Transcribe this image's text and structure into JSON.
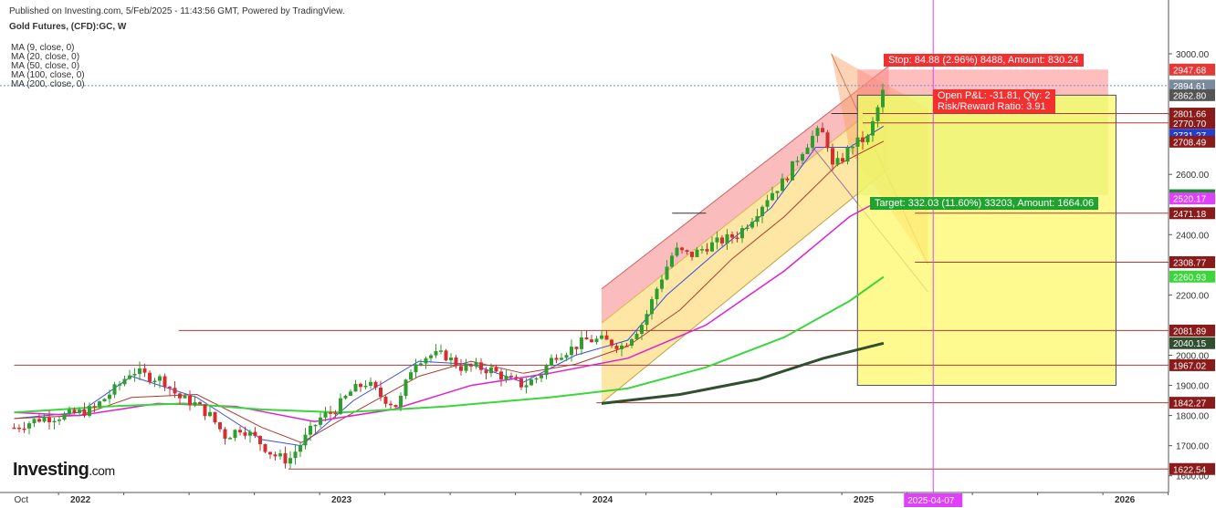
{
  "header": {
    "published": "Published on Investing.com, 5/Feb/2025 - 11:43:56 GMT, Powered by TradingView.",
    "instrument": "Gold Futures, (CFD):GC, W"
  },
  "ma_legend": [
    "MA (9, close, 0)",
    "MA (20, close, 0)",
    "MA (50, close, 0)",
    "MA (100, close, 0)",
    "MA (200, close, 0)"
  ],
  "logo": {
    "main": "Investing",
    "suffix": ".com"
  },
  "position": {
    "stop_label": "Stop: 84.88 (2.96%) 8488, Amount: 830.24",
    "pnl_label": "Open P&L: -31.81, Qty: 2",
    "rr_label": "Risk/Reward Ratio: 3.91",
    "target_label": "Target: 332.03 (11.60%) 33203, Amount: 1664.06"
  },
  "colors": {
    "up": "#2e9e2e",
    "down": "#d32f2f",
    "ma9": "#3a50e0",
    "ma20": "#b03a2e",
    "ma50": "#e020d0",
    "ma100": "#3ad63a",
    "ma200": "#2f4f2f",
    "level_line": "#b03a3a",
    "pink_vline": "#e040fb"
  },
  "chart_data": {
    "type": "candlestick",
    "timeframe": "W",
    "y_axis": {
      "ticks": [
        3000,
        2800,
        2600,
        2400,
        2200,
        2000,
        1900,
        1800,
        1700,
        1600
      ],
      "tick_labels": [
        "3000.00",
        "2800.00",
        "2600.00",
        "2400.00",
        "2200.00",
        "2000.00",
        "1900.00",
        "1800.00",
        "1700.00",
        "1600.00"
      ],
      "scale": "linear"
    },
    "x_axis": {
      "ticks": [
        {
          "label": "Oct",
          "year": 2021.75
        },
        {
          "label": "2022",
          "year": 2022.0
        },
        {
          "label": "2023",
          "year": 2023.0
        },
        {
          "label": "2024",
          "year": 2024.0
        },
        {
          "label": "2025",
          "year": 2025.0
        },
        {
          "label": "2026",
          "year": 2026.0
        }
      ],
      "highlight": {
        "label": "2025-04-07",
        "year": 2025.27
      }
    },
    "price_labels": [
      {
        "value": 2947.68,
        "label": "2947.68",
        "color": "#e53935"
      },
      {
        "value": 2894.61,
        "label": "2894.61",
        "color": "#7a8aa0"
      },
      {
        "value": 2862.8,
        "label": "2862.80",
        "color": "#555555"
      },
      {
        "value": 2801.66,
        "label": "2801.66",
        "color": "#8b1a1a"
      },
      {
        "value": 2770.7,
        "label": "2770.70",
        "color": "#8b1a1a"
      },
      {
        "value": 2731.27,
        "label": "2731.27",
        "color": "#1f3fd6"
      },
      {
        "value": 2708.49,
        "label": "2708.49",
        "color": "#8b1a1a"
      },
      {
        "value": 2530.77,
        "label": "2530.77",
        "color": "#1b8a2e"
      },
      {
        "value": 2520.17,
        "label": "2520.17",
        "color": "#e040fb"
      },
      {
        "value": 2471.18,
        "label": "2471.18",
        "color": "#8b1a1a"
      },
      {
        "value": 2308.77,
        "label": "2308.77",
        "color": "#8b1a1a"
      },
      {
        "value": 2260.93,
        "label": "2260.93",
        "color": "#3ad63a"
      },
      {
        "value": 2081.89,
        "label": "2081.89",
        "color": "#8b1a1a"
      },
      {
        "value": 2040.15,
        "label": "2040.15",
        "color": "#2f4f2f"
      },
      {
        "value": 1967.02,
        "label": "1967.02",
        "color": "#8b1a1a"
      },
      {
        "value": 1842.27,
        "label": "1842.27",
        "color": "#8b1a1a"
      },
      {
        "value": 1622.54,
        "label": "1622.54",
        "color": "#8b1a1a"
      }
    ],
    "horizontal_levels": [
      {
        "value": 2081.89,
        "from_year": 2022.38
      },
      {
        "value": 1967.02,
        "from_year": 2021.75
      },
      {
        "value": 1842.27,
        "from_year": 2023.98
      },
      {
        "value": 1622.54,
        "from_year": 2022.8
      },
      {
        "value": 2308.77,
        "from_year": 2025.2
      },
      {
        "value": 2471.18,
        "from_year": 2025.2
      },
      {
        "value": 2770.7,
        "from_year": 2025.0
      },
      {
        "value": 2801.66,
        "from_year": 2025.0
      }
    ],
    "price_path": [
      [
        2021.75,
        1760
      ],
      [
        2021.85,
        1790
      ],
      [
        2021.95,
        1800
      ],
      [
        2022.05,
        1820
      ],
      [
        2022.15,
        1900
      ],
      [
        2022.2,
        1950
      ],
      [
        2022.26,
        1930
      ],
      [
        2022.32,
        1920
      ],
      [
        2022.38,
        1860
      ],
      [
        2022.44,
        1840
      ],
      [
        2022.5,
        1800
      ],
      [
        2022.56,
        1730
      ],
      [
        2022.62,
        1760
      ],
      [
        2022.68,
        1720
      ],
      [
        2022.74,
        1670
      ],
      [
        2022.8,
        1650
      ],
      [
        2022.86,
        1720
      ],
      [
        2022.92,
        1790
      ],
      [
        2022.98,
        1820
      ],
      [
        2023.04,
        1880
      ],
      [
        2023.1,
        1910
      ],
      [
        2023.16,
        1860
      ],
      [
        2023.22,
        1830
      ],
      [
        2023.28,
        1980
      ],
      [
        2023.34,
        2000
      ],
      [
        2023.4,
        2000
      ],
      [
        2023.46,
        1960
      ],
      [
        2023.52,
        1960
      ],
      [
        2023.58,
        1950
      ],
      [
        2023.64,
        1920
      ],
      [
        2023.7,
        1900
      ],
      [
        2023.76,
        1930
      ],
      [
        2023.82,
        2000
      ],
      [
        2023.88,
        2020
      ],
      [
        2023.94,
        2050
      ],
      [
        2024.0,
        2050
      ],
      [
        2024.08,
        2030
      ],
      [
        2024.16,
        2110
      ],
      [
        2024.22,
        2240
      ],
      [
        2024.28,
        2350
      ],
      [
        2024.34,
        2330
      ],
      [
        2024.4,
        2360
      ],
      [
        2024.46,
        2380
      ],
      [
        2024.52,
        2400
      ],
      [
        2024.58,
        2460
      ],
      [
        2024.64,
        2530
      ],
      [
        2024.7,
        2580
      ],
      [
        2024.76,
        2670
      ],
      [
        2024.82,
        2740
      ],
      [
        2024.86,
        2730
      ],
      [
        2024.88,
        2620
      ],
      [
        2024.92,
        2650
      ],
      [
        2024.96,
        2700
      ],
      [
        2025.02,
        2720
      ],
      [
        2025.05,
        2800
      ],
      [
        2025.08,
        2880
      ]
    ],
    "ma_series": [
      {
        "name": "MA (9, close, 0)",
        "points": [
          [
            2021.75,
            1790
          ],
          [
            2022.0,
            1810
          ],
          [
            2022.2,
            1930
          ],
          [
            2022.45,
            1860
          ],
          [
            2022.7,
            1720
          ],
          [
            2022.85,
            1700
          ],
          [
            2023.05,
            1850
          ],
          [
            2023.3,
            1980
          ],
          [
            2023.5,
            1970
          ],
          [
            2023.7,
            1910
          ],
          [
            2023.9,
            2000
          ],
          [
            2024.1,
            2050
          ],
          [
            2024.25,
            2200
          ],
          [
            2024.45,
            2350
          ],
          [
            2024.65,
            2490
          ],
          [
            2024.82,
            2690
          ],
          [
            2024.95,
            2690
          ],
          [
            2025.08,
            2760
          ]
        ]
      },
      {
        "name": "MA (20, close, 0)",
        "points": [
          [
            2021.75,
            1790
          ],
          [
            2022.0,
            1800
          ],
          [
            2022.2,
            1860
          ],
          [
            2022.45,
            1870
          ],
          [
            2022.7,
            1760
          ],
          [
            2022.85,
            1710
          ],
          [
            2023.05,
            1810
          ],
          [
            2023.3,
            1930
          ],
          [
            2023.5,
            1980
          ],
          [
            2023.7,
            1940
          ],
          [
            2023.9,
            1970
          ],
          [
            2024.1,
            2030
          ],
          [
            2024.3,
            2150
          ],
          [
            2024.5,
            2320
          ],
          [
            2024.7,
            2460
          ],
          [
            2024.9,
            2630
          ],
          [
            2025.08,
            2710
          ]
        ]
      },
      {
        "name": "MA (50, close, 0)",
        "points": [
          [
            2021.75,
            1810
          ],
          [
            2022.0,
            1800
          ],
          [
            2022.3,
            1840
          ],
          [
            2022.6,
            1830
          ],
          [
            2022.9,
            1780
          ],
          [
            2023.2,
            1820
          ],
          [
            2023.5,
            1900
          ],
          [
            2023.8,
            1940
          ],
          [
            2024.1,
            1990
          ],
          [
            2024.4,
            2100
          ],
          [
            2024.7,
            2280
          ],
          [
            2024.95,
            2460
          ],
          [
            2025.08,
            2520
          ]
        ]
      },
      {
        "name": "MA (100, close, 0)",
        "points": [
          [
            2021.75,
            1810
          ],
          [
            2022.1,
            1830
          ],
          [
            2022.4,
            1840
          ],
          [
            2022.7,
            1820
          ],
          [
            2023.0,
            1810
          ],
          [
            2023.4,
            1830
          ],
          [
            2023.8,
            1860
          ],
          [
            2024.1,
            1890
          ],
          [
            2024.4,
            1960
          ],
          [
            2024.7,
            2060
          ],
          [
            2024.95,
            2180
          ],
          [
            2025.08,
            2260
          ]
        ]
      },
      {
        "name": "MA (200, close, 0)",
        "points": [
          [
            2024.0,
            1840
          ],
          [
            2024.3,
            1870
          ],
          [
            2024.6,
            1920
          ],
          [
            2024.85,
            1990
          ],
          [
            2025.08,
            2040
          ]
        ]
      }
    ],
    "position_tool": {
      "entry": 2862.8,
      "stop": 2947.68,
      "target": 2530.77,
      "from_year": 2024.98,
      "to_year": 2025.94
    },
    "channel": {
      "upper_start": [
        2024.0,
        2220
      ],
      "upper_end": [
        2025.1,
        2960
      ],
      "lower_start": [
        2024.0,
        1842
      ],
      "lower_end": [
        2025.1,
        2620
      ]
    }
  }
}
